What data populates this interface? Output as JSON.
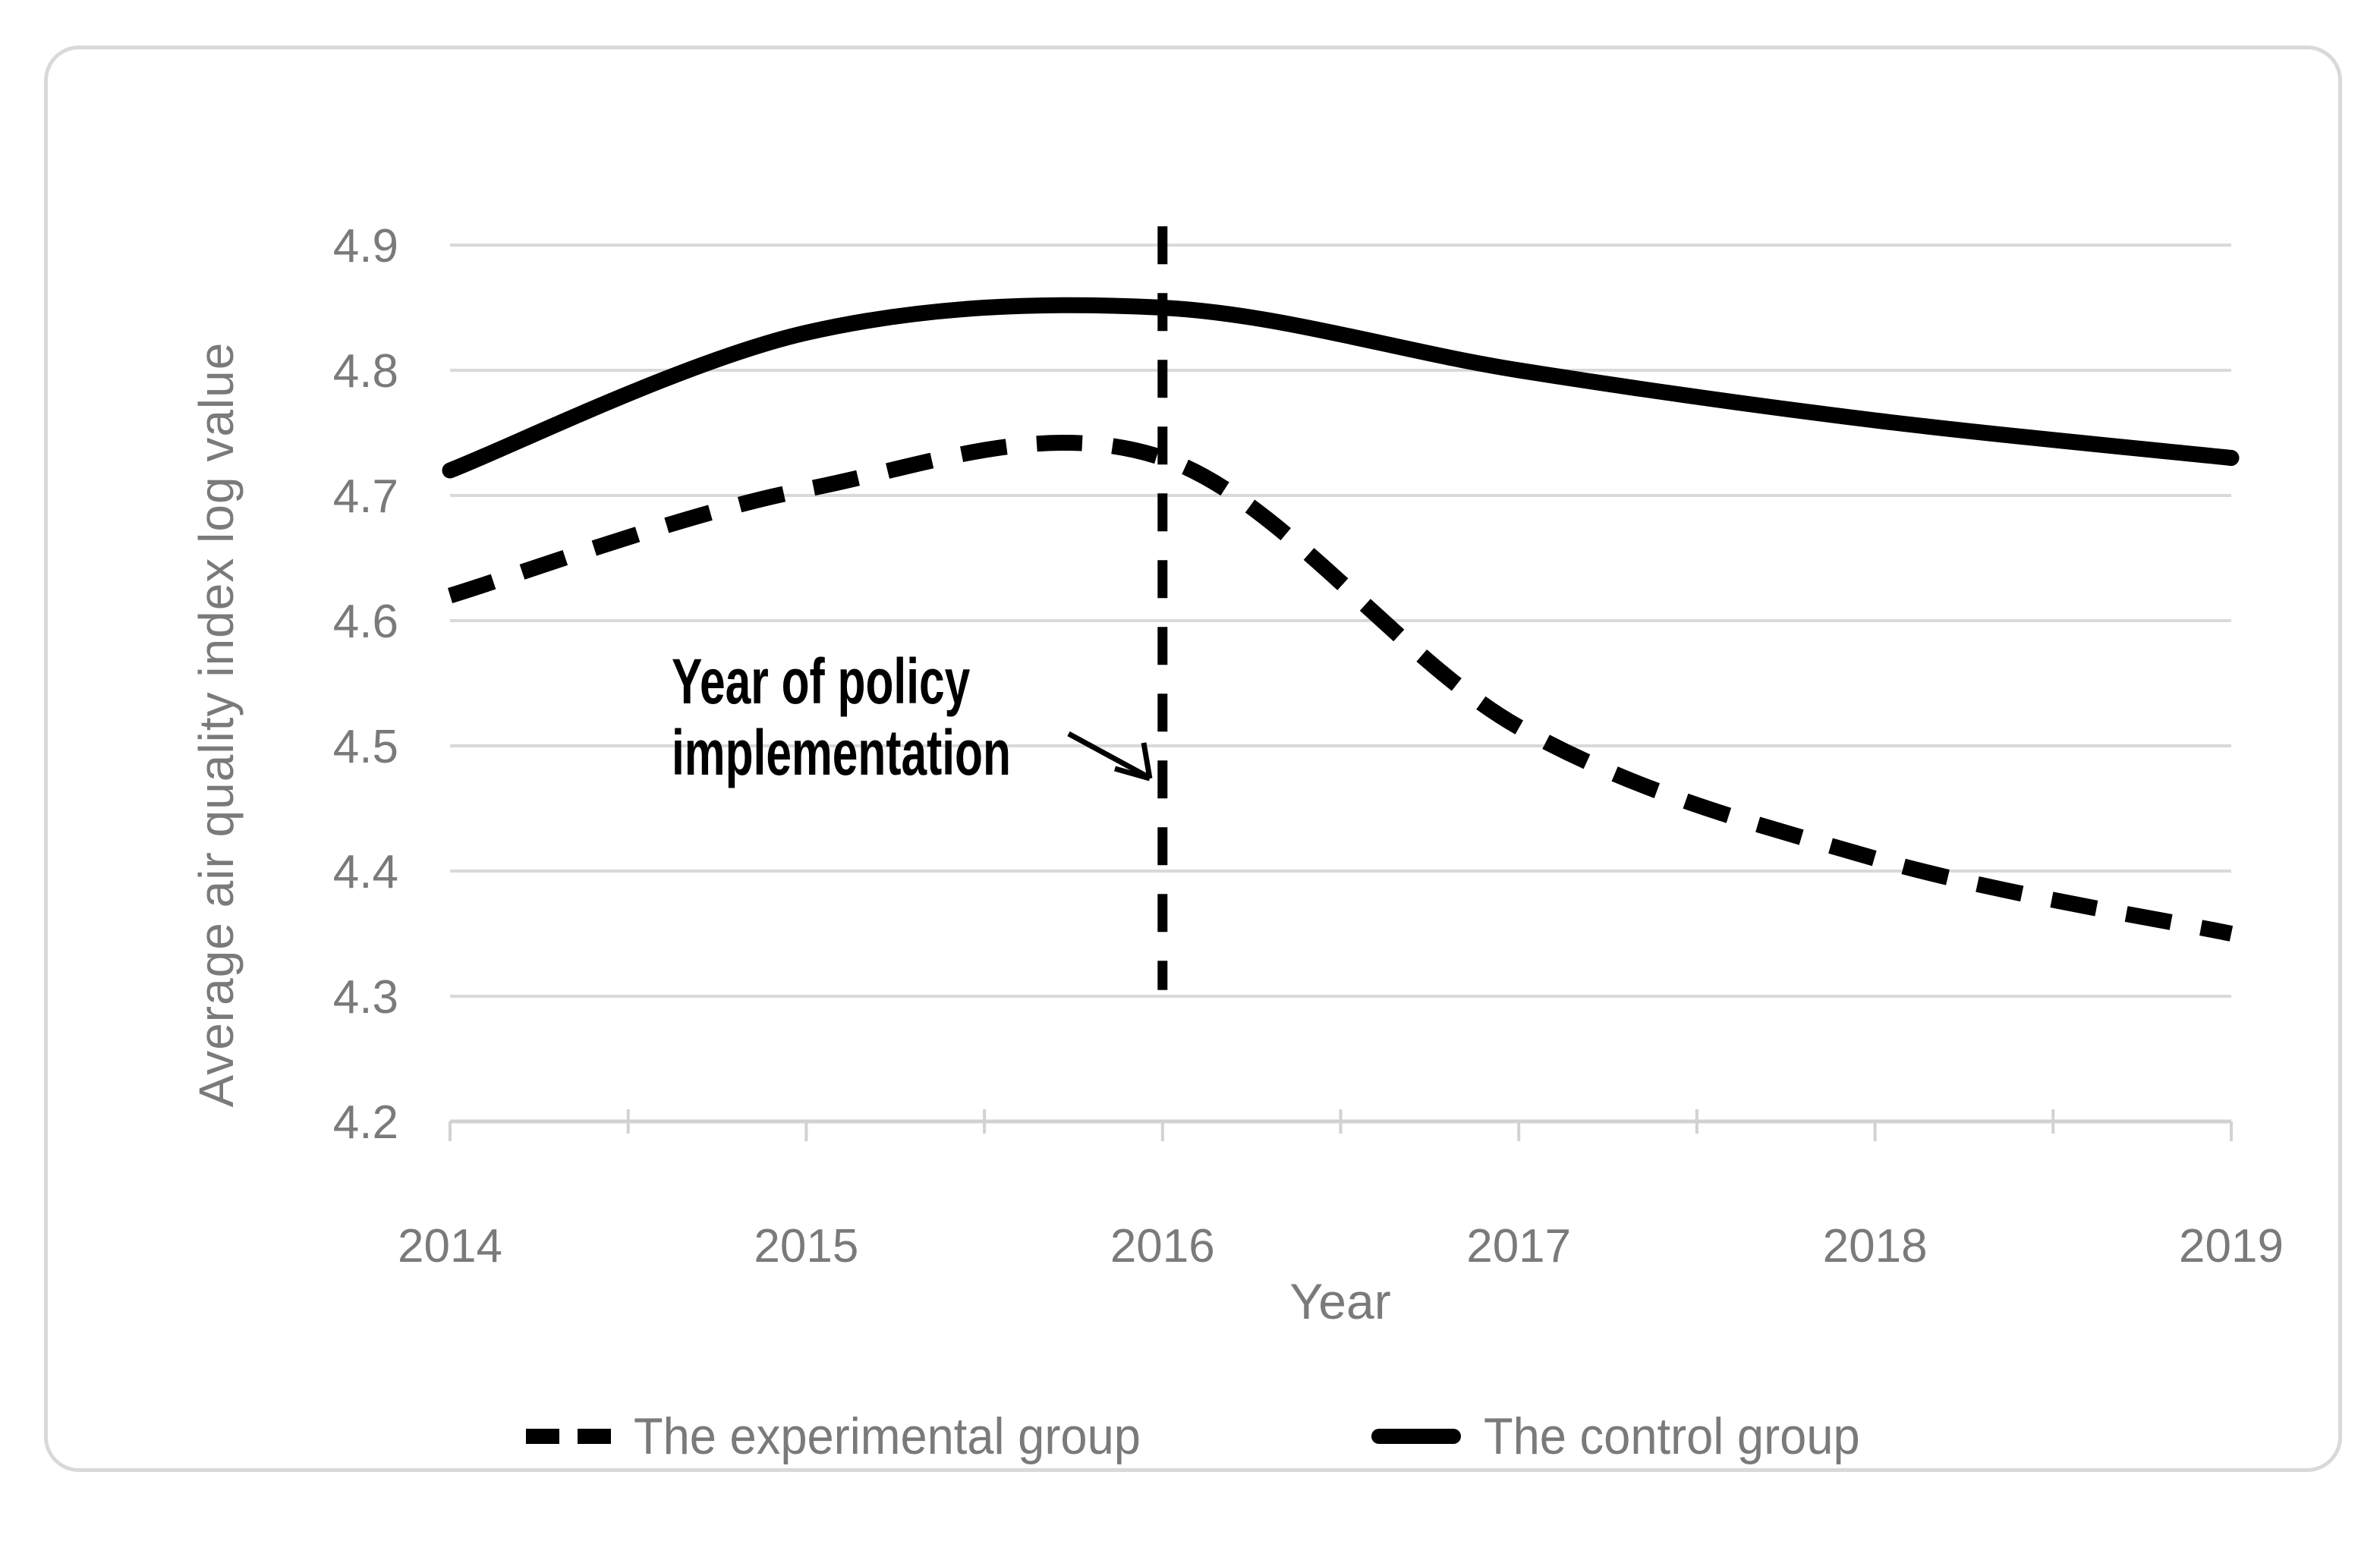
{
  "chart_data": {
    "type": "line",
    "x": [
      2014,
      2015,
      2016,
      2017,
      2018,
      2019
    ],
    "xtick_labels": [
      "2014",
      "2015",
      "2016",
      "2017",
      "2018",
      "2019"
    ],
    "ytick_labels": [
      "4.2",
      "4.3",
      "4.4",
      "4.5",
      "4.6",
      "4.7",
      "4.8",
      "4.9"
    ],
    "ylim": [
      4.2,
      4.92
    ],
    "xlabel": "Year",
    "ylabel": "Average air quality index log value",
    "grid": true,
    "legend_position": "bottom",
    "series": [
      {
        "name": "The experimental group",
        "style": "dashed",
        "color": "#000000",
        "values": [
          4.62,
          4.705,
          4.73,
          4.515,
          4.41,
          4.35
        ]
      },
      {
        "name": "The control group",
        "style": "solid",
        "color": "#000000",
        "values": [
          4.72,
          4.83,
          4.85,
          4.8,
          4.76,
          4.73
        ]
      }
    ],
    "annotation": {
      "lines": [
        "Year of policy",
        "implementation"
      ],
      "target_x": 2016,
      "marker_y_range": [
        4.305,
        4.915
      ]
    },
    "colors": {
      "line": "#000000",
      "gridline": "#d9d9d9",
      "axis_line": "#d2d2d2",
      "axis_text": "#7a7a7a",
      "annotation_text": "#000000"
    }
  }
}
